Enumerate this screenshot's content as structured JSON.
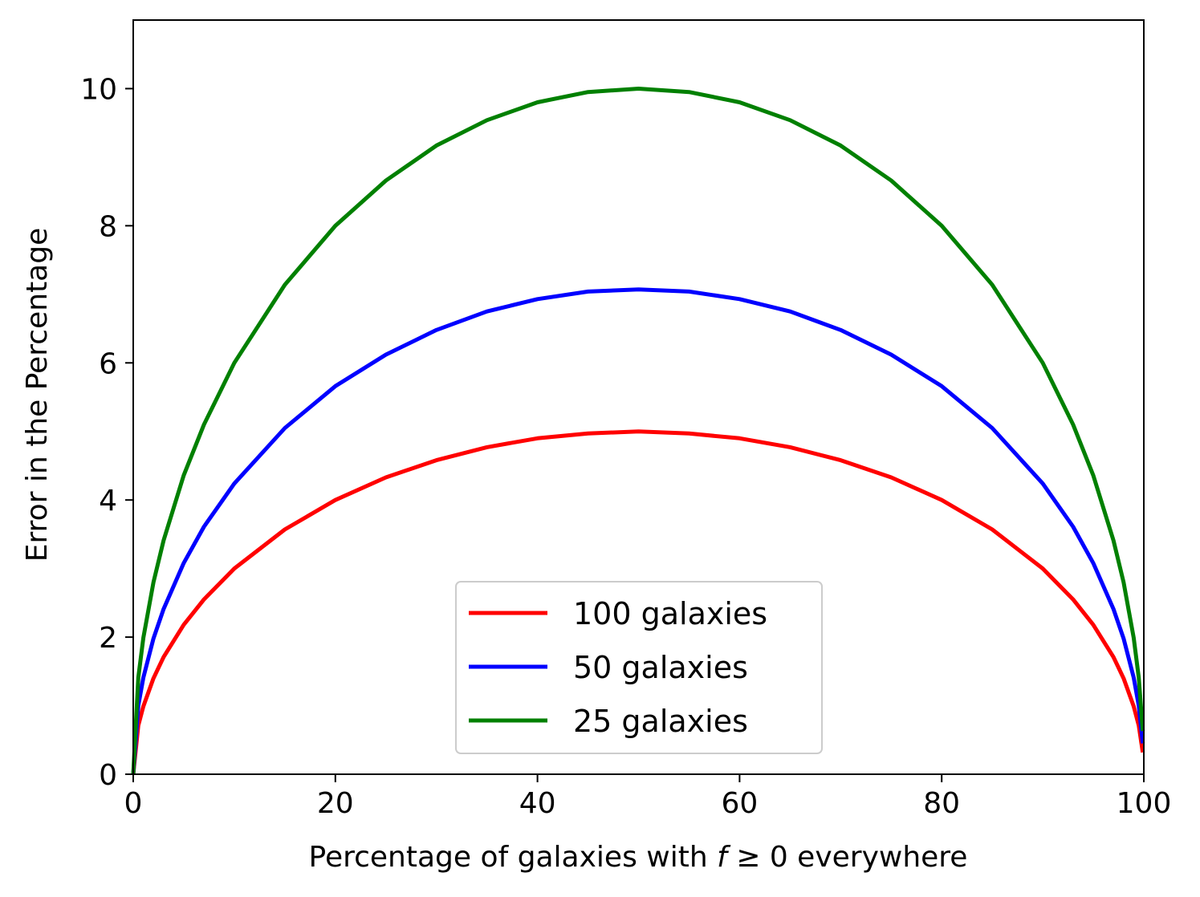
{
  "chart_data": {
    "type": "line",
    "title": "",
    "xlabel_parts": [
      "Percentage of galaxies with ",
      "f",
      " ≥ 0 everywhere"
    ],
    "ylabel": "Error in the Percentage",
    "xlim": [
      0,
      100
    ],
    "ylim": [
      0,
      11
    ],
    "xticks": [
      0,
      20,
      40,
      60,
      80,
      100
    ],
    "yticks": [
      0,
      2,
      4,
      6,
      8,
      10
    ],
    "grid": false,
    "legend_position": "lower-center",
    "x": [
      0,
      0.5,
      1,
      2,
      3,
      5,
      7,
      10,
      15,
      20,
      25,
      30,
      35,
      40,
      45,
      50,
      55,
      60,
      65,
      70,
      75,
      80,
      85,
      90,
      93,
      95,
      97,
      98,
      99,
      99.5,
      99.9
    ],
    "series": [
      {
        "name": "100 galaxies",
        "color": "#ff0000",
        "values": [
          0,
          0.71,
          0.99,
          1.4,
          1.71,
          2.18,
          2.55,
          3.0,
          3.57,
          4.0,
          4.33,
          4.58,
          4.77,
          4.9,
          4.97,
          5.0,
          4.97,
          4.9,
          4.77,
          4.58,
          4.33,
          4.0,
          3.57,
          3.0,
          2.55,
          2.18,
          1.71,
          1.4,
          0.99,
          0.71,
          0.32
        ]
      },
      {
        "name": "50 galaxies",
        "color": "#0000ff",
        "values": [
          0,
          1.0,
          1.41,
          1.98,
          2.41,
          3.08,
          3.61,
          4.24,
          5.05,
          5.66,
          6.12,
          6.48,
          6.75,
          6.93,
          7.04,
          7.07,
          7.04,
          6.93,
          6.75,
          6.48,
          6.12,
          5.66,
          5.05,
          4.24,
          3.61,
          3.08,
          2.41,
          1.98,
          1.41,
          1.0,
          0.45
        ]
      },
      {
        "name": "25 galaxies",
        "color": "#008000",
        "values": [
          0,
          1.41,
          1.99,
          2.8,
          3.41,
          4.36,
          5.1,
          6.0,
          7.14,
          8.0,
          8.66,
          9.17,
          9.54,
          9.8,
          9.95,
          10.0,
          9.95,
          9.8,
          9.54,
          9.17,
          8.66,
          8.0,
          7.14,
          6.0,
          5.1,
          4.36,
          3.41,
          2.8,
          1.99,
          1.41,
          0.63
        ]
      }
    ]
  }
}
